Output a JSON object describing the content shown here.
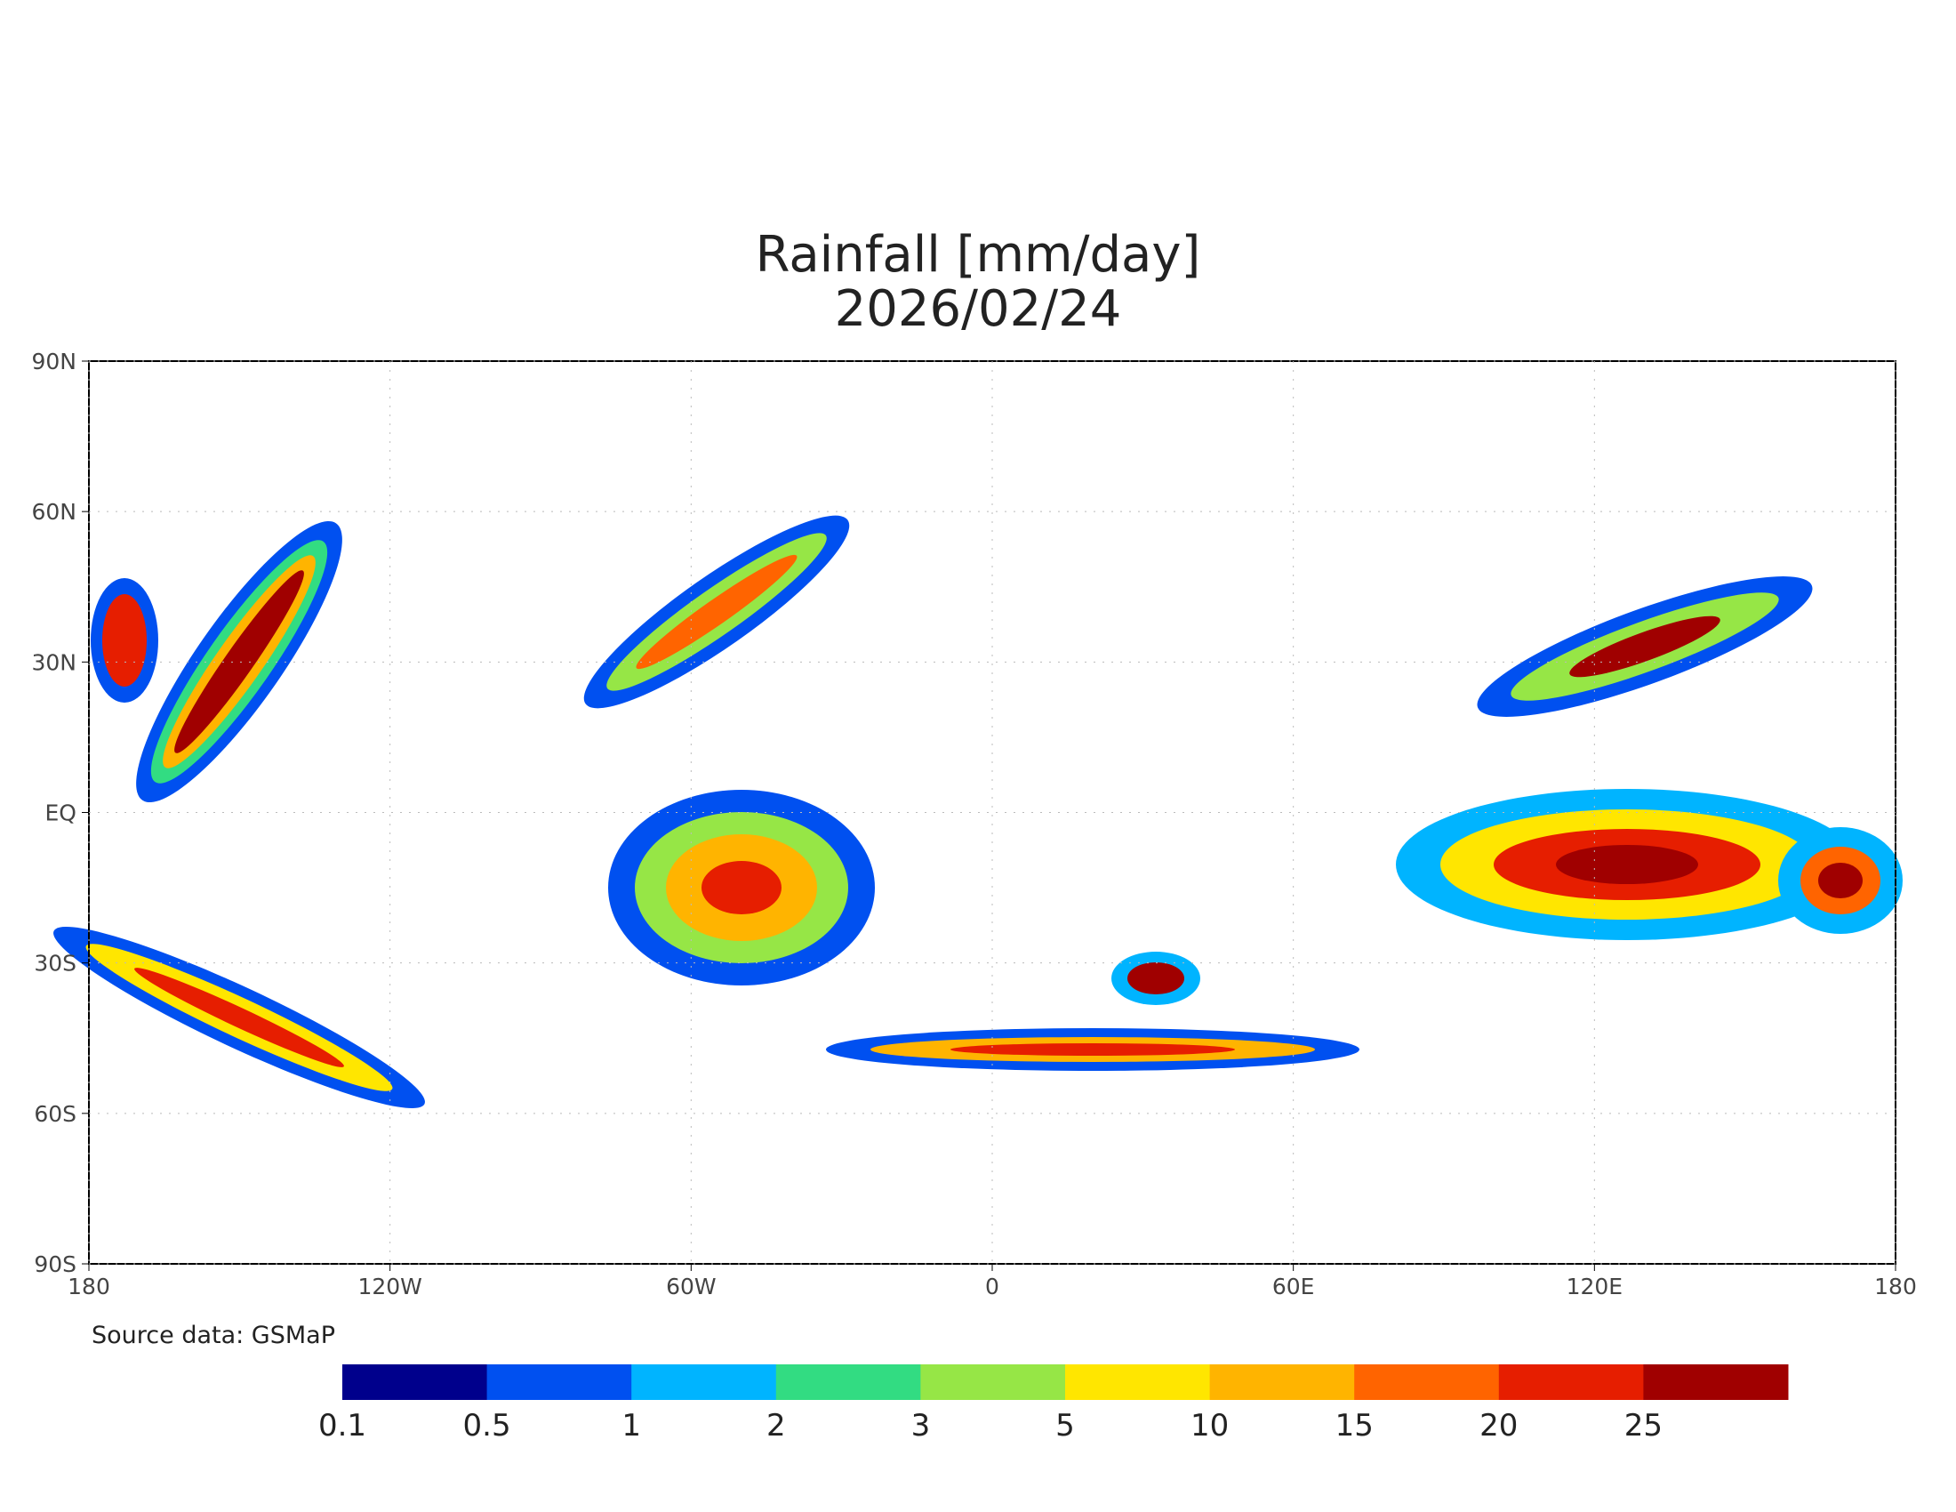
{
  "map": {
    "title": "Rainfall [mm/day]",
    "date": "2026/02/24",
    "lon_ticks": [
      {
        "value": -180,
        "label": "180"
      },
      {
        "value": -120,
        "label": "120W"
      },
      {
        "value": -60,
        "label": "60W"
      },
      0,
      {
        "value": 60,
        "label": "60E"
      },
      {
        "value": 120,
        "label": "120E"
      },
      {
        "value": 180,
        "label": "180"
      }
    ],
    "lat_ticks": [
      {
        "value": 90,
        "label": "90N"
      },
      {
        "value": 60,
        "label": "60N"
      },
      {
        "value": 30,
        "label": "30N"
      },
      {
        "value": 0,
        "label": "EQ"
      },
      {
        "value": -30,
        "label": "30S"
      },
      {
        "value": -60,
        "label": "60S"
      },
      {
        "value": -90,
        "label": "90S"
      }
    ],
    "source": "Source data: GSMaP",
    "colorbar": {
      "levels": [
        0.1,
        0.5,
        1,
        2,
        3,
        5,
        10,
        15,
        20,
        25
      ],
      "colors": [
        "#00008c",
        "#0050f0",
        "#00b4ff",
        "#32dc82",
        "#96e646",
        "#ffe600",
        "#ffb400",
        "#ff6400",
        "#e61e00",
        "#a00000"
      ]
    }
  }
}
